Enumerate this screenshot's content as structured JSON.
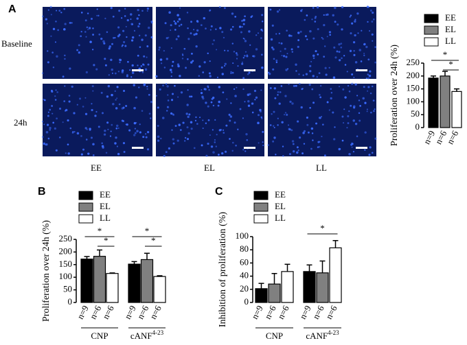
{
  "panel_a": {
    "label": "A",
    "row_labels": [
      "Baseline",
      "24h"
    ],
    "column_labels": [
      "EE",
      "EL",
      "LL"
    ]
  },
  "chart_data": [
    {
      "type": "bar",
      "panel": "A",
      "ylabel": "Proliferation over 24h (%)",
      "ylim": [
        0,
        250
      ],
      "yticks": [
        0,
        50,
        100,
        150,
        200,
        250
      ],
      "series": [
        {
          "name": "EE",
          "color": "#000000",
          "values": [
            192
          ],
          "errors": [
            8
          ],
          "n_labels": [
            "n=9"
          ]
        },
        {
          "name": "EL",
          "color": "#808080",
          "values": [
            200
          ],
          "errors": [
            18
          ],
          "n_labels": [
            "n=6"
          ]
        },
        {
          "name": "LL",
          "color": "#ffffff",
          "values": [
            140
          ],
          "errors": [
            10
          ],
          "n_labels": [
            "n=6"
          ]
        }
      ],
      "significance": [
        [
          {
            "between": [
              "EE",
              "LL"
            ],
            "label": "*"
          },
          {
            "between": [
              "EL",
              "LL"
            ],
            "label": "*"
          }
        ]
      ]
    },
    {
      "type": "bar",
      "panel": "B",
      "ylabel": "Proliferation over 24h (%)",
      "ylim": [
        0,
        250
      ],
      "yticks": [
        0,
        50,
        100,
        150,
        200,
        250
      ],
      "groups": [
        {
          "text": "CNP"
        },
        {
          "text": "cANF",
          "sup": "4-23"
        }
      ],
      "series": [
        {
          "name": "EE",
          "color": "#000000",
          "values": [
            172,
            152
          ],
          "errors": [
            10,
            10
          ],
          "n_labels": [
            "n=9",
            "n=9"
          ]
        },
        {
          "name": "EL",
          "color": "#808080",
          "values": [
            183,
            170
          ],
          "errors": [
            25,
            25
          ],
          "n_labels": [
            "n=6",
            "n=6"
          ]
        },
        {
          "name": "LL",
          "color": "#ffffff",
          "values": [
            115,
            103
          ],
          "errors": [
            2,
            3
          ],
          "n_labels": [
            "n=6",
            "n=6"
          ]
        }
      ],
      "significance": [
        [
          {
            "between": [
              "EE",
              "LL"
            ],
            "label": "*"
          },
          {
            "between": [
              "EL",
              "LL"
            ],
            "label": "*"
          }
        ],
        [
          {
            "between": [
              "EE",
              "LL"
            ],
            "label": "*"
          },
          {
            "between": [
              "EL",
              "LL"
            ],
            "label": "*"
          }
        ]
      ]
    },
    {
      "type": "bar",
      "panel": "C",
      "ylabel": "Inhibition of proliferation (%)",
      "ylim": [
        0,
        100
      ],
      "yticks": [
        0,
        20,
        40,
        60,
        80,
        100
      ],
      "groups": [
        {
          "text": "CNP"
        },
        {
          "text": "cANF",
          "sup": "4-23"
        }
      ],
      "series": [
        {
          "name": "EE",
          "color": "#000000",
          "values": [
            21,
            47
          ],
          "errors": [
            8,
            10
          ],
          "n_labels": [
            "n=9",
            "n=9"
          ]
        },
        {
          "name": "EL",
          "color": "#808080",
          "values": [
            28,
            45
          ],
          "errors": [
            16,
            18
          ],
          "n_labels": [
            "n=6",
            "n=6"
          ]
        },
        {
          "name": "LL",
          "color": "#ffffff",
          "values": [
            47,
            83
          ],
          "errors": [
            11,
            11
          ],
          "n_labels": [
            "n=6",
            "n=6"
          ]
        }
      ],
      "significance": [
        [],
        [
          {
            "between": [
              "EE",
              "LL"
            ],
            "label": "*"
          }
        ]
      ]
    }
  ]
}
